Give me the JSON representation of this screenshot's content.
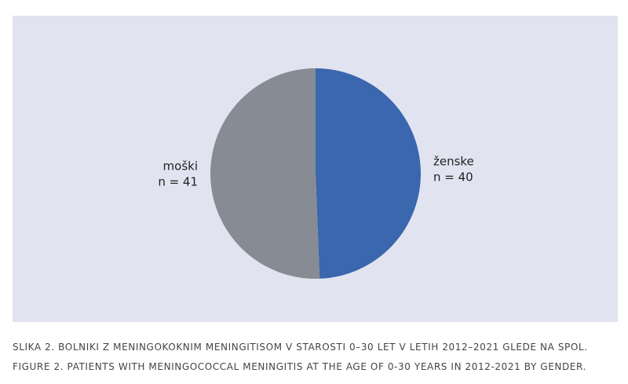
{
  "chart_data": {
    "type": "pie",
    "categories": [
      "ženske",
      "moški"
    ],
    "values": [
      40,
      41
    ],
    "value_labels": [
      "n = 40",
      "n = 41"
    ],
    "colors": [
      "#3a67ae",
      "#878b94"
    ],
    "start_angle": 0,
    "direction": "clockwise",
    "caption": [
      "SLIKA 2. BOLNIKI Z MENINGOKOKNIM MENINGITISOM V STAROSTI 0–30 LET V LETIH 2012–2021 GLEDE NA SPOL.",
      "FIGURE 2. PATIENTS WITH MENINGOCOCCAL MENINGITIS AT THE AGE OF 0-30 YEARS IN 2012-2021 BY GENDER."
    ]
  }
}
